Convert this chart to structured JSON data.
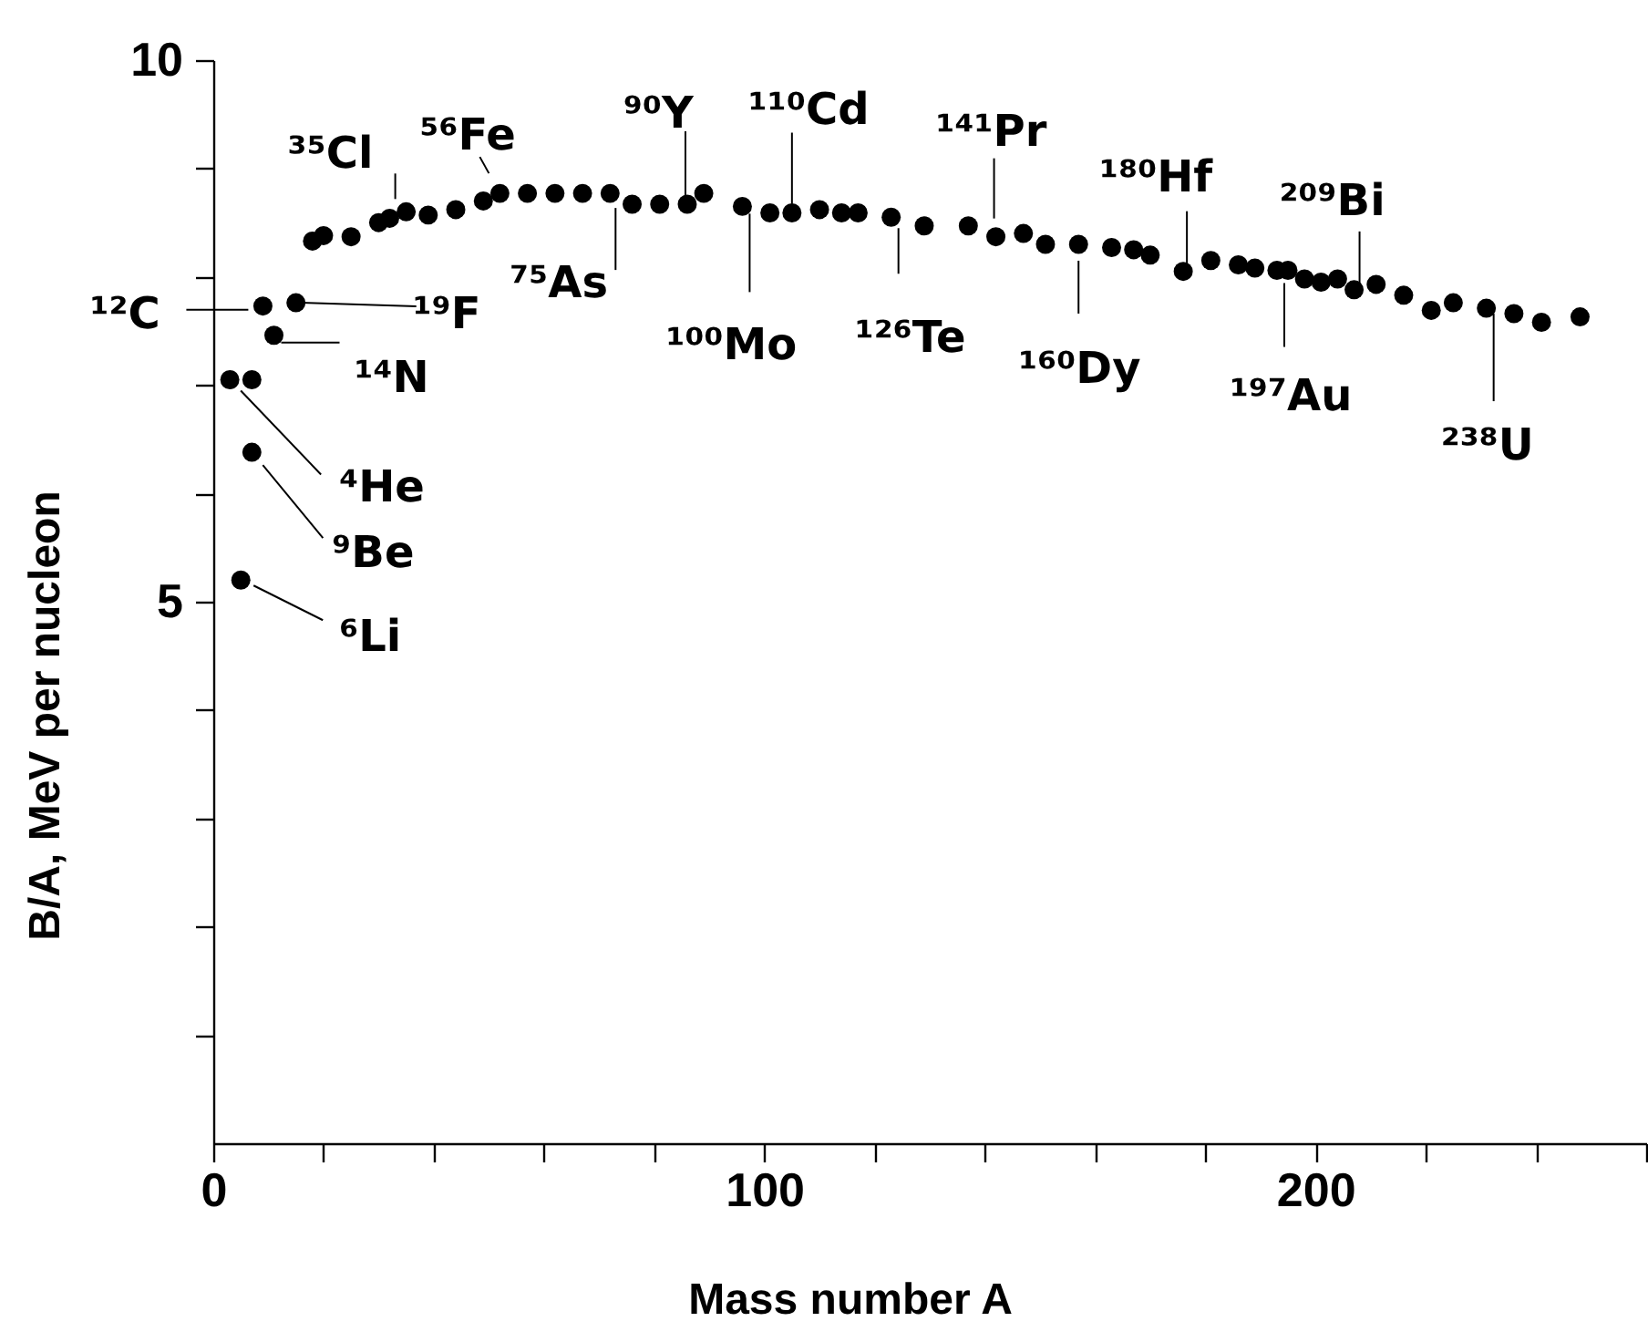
{
  "chart_data": {
    "type": "scatter",
    "xlabel": "Mass number A",
    "ylabel": "B/A, MeV per nucleon",
    "x": [
      3,
      7,
      7,
      5,
      9,
      11,
      15,
      18,
      20,
      25,
      30,
      32,
      35,
      39,
      44,
      49,
      52,
      57,
      62,
      67,
      72,
      76,
      81,
      86,
      89,
      96,
      101,
      105,
      110,
      114,
      117,
      123,
      129,
      137,
      142,
      147,
      151,
      157,
      163,
      167,
      170,
      176,
      181,
      186,
      189,
      193,
      195,
      198,
      201,
      204,
      207,
      211,
      216,
      221,
      225,
      231,
      236,
      241,
      248
    ],
    "series": [
      {
        "color": "#000000",
        "values": [
          7.05,
          7.05,
          6.38,
          5.2,
          7.73,
          7.46,
          7.76,
          8.33,
          8.38,
          8.37,
          8.5,
          8.54,
          8.6,
          8.57,
          8.62,
          8.7,
          8.77,
          8.77,
          8.77,
          8.77,
          8.77,
          8.67,
          8.67,
          8.67,
          8.77,
          8.65,
          8.59,
          8.59,
          8.62,
          8.59,
          8.59,
          8.55,
          8.47,
          8.47,
          8.37,
          8.4,
          8.3,
          8.3,
          8.27,
          8.25,
          8.2,
          8.05,
          8.15,
          8.11,
          8.08,
          8.06,
          8.06,
          7.98,
          7.95,
          7.98,
          7.88,
          7.93,
          7.83,
          7.69,
          7.76,
          7.71,
          7.66,
          7.58,
          7.63
        ]
      }
    ],
    "marker": "circle",
    "xlim": [
      0,
      260
    ],
    "xticks": [
      0,
      {
        "value": 20,
        "label": null
      },
      {
        "value": 40,
        "label": null
      },
      {
        "value": 60,
        "label": null
      },
      {
        "value": 80,
        "label": null
      },
      100,
      {
        "value": 120,
        "label": null
      },
      {
        "value": 140,
        "label": null
      },
      {
        "value": 160,
        "label": null
      },
      {
        "value": 180,
        "label": null
      },
      200,
      {
        "value": 220,
        "label": null
      },
      {
        "value": 240,
        "label": null
      },
      {
        "value": 260,
        "label": null
      }
    ],
    "ylim": [
      0,
      10
    ],
    "yticks": [
      {
        "value": 1,
        "label": null
      },
      {
        "value": 2,
        "label": null
      },
      {
        "value": 3,
        "label": null
      },
      {
        "value": 4,
        "label": null
      },
      5,
      {
        "value": 6,
        "label": null
      },
      {
        "value": 7,
        "label": null
      },
      {
        "value": 8,
        "label": null
      },
      {
        "value": 9,
        "label": null
      },
      10
    ],
    "annotations": [
      {
        "text": "¹²C",
        "x": 9,
        "y": 7.73
      },
      {
        "text": "¹⁹F",
        "x": 15,
        "y": 7.76
      },
      {
        "text": "¹⁴N",
        "x": 11,
        "y": 7.46
      },
      {
        "text": "⁴He",
        "x": 3,
        "y": 7.05
      },
      {
        "text": "⁹Be",
        "x": 7,
        "y": 6.38
      },
      {
        "text": "⁶Li",
        "x": 5,
        "y": 5.2
      },
      {
        "text": "³⁵Cl",
        "x": 35,
        "y": 8.6
      },
      {
        "text": "⁵⁶Fe",
        "x": 52,
        "y": 8.77
      },
      {
        "text": "⁷⁵As",
        "x": 72,
        "y": 8.77
      },
      {
        "text": "⁹⁰Y",
        "x": 86,
        "y": 8.67
      },
      {
        "text": "¹⁰⁰Mo",
        "x": 96,
        "y": 8.65
      },
      {
        "text": "¹¹⁰Cd",
        "x": 105,
        "y": 8.59
      },
      {
        "text": "¹²⁶Te",
        "x": 123,
        "y": 8.55
      },
      {
        "text": "¹⁴¹Pr",
        "x": 142,
        "y": 8.37
      },
      {
        "text": "¹⁶⁰Dy",
        "x": 157,
        "y": 8.3
      },
      {
        "text": "¹⁸⁰Hf",
        "x": 176,
        "y": 8.05
      },
      {
        "text": "¹⁹⁷Au",
        "x": 195,
        "y": 8.06
      },
      {
        "text": "²⁰⁹Bi",
        "x": 207,
        "y": 7.88
      },
      {
        "text": "²³⁸U",
        "x": 231,
        "y": 7.71
      }
    ]
  }
}
